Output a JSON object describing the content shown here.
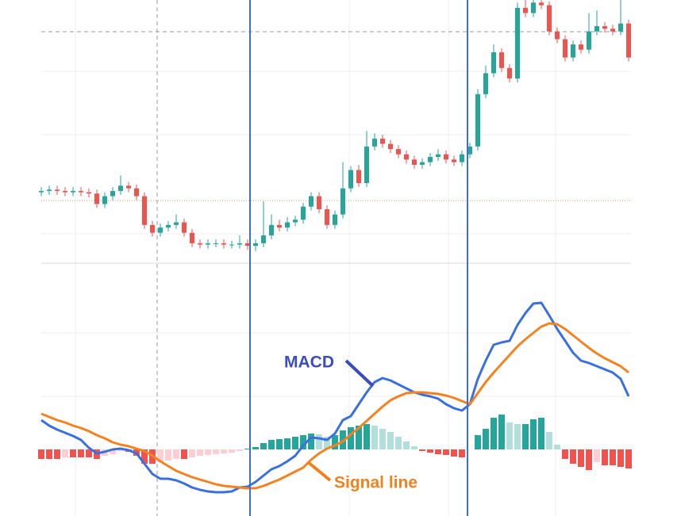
{
  "chart_data": [
    {
      "type": "candlestick",
      "up_color": "#26a69a",
      "down_color": "#ef5350",
      "ylim": [
        0,
        100
      ],
      "open": [
        26.5,
        27,
        27.5,
        27,
        26.5,
        27,
        26.5,
        26,
        22,
        25,
        27,
        29,
        28,
        25,
        14,
        11,
        13,
        14,
        15,
        11,
        7,
        6.5,
        7,
        7,
        6.5,
        6.5,
        7,
        6,
        7,
        10,
        14,
        13,
        15,
        16,
        21,
        25,
        20,
        14,
        18,
        28,
        35,
        30,
        44,
        47,
        45,
        43,
        41,
        39,
        37,
        38,
        40,
        41,
        39,
        38,
        41,
        44,
        64,
        72,
        80,
        74,
        70,
        97,
        95,
        99,
        98,
        88,
        85,
        78,
        83,
        81,
        88,
        90,
        89,
        88,
        91
      ],
      "high": [
        28.5,
        29,
        29,
        28.5,
        28.5,
        28.5,
        28,
        27.5,
        26.5,
        28.5,
        33,
        30.5,
        29.5,
        26.5,
        15.5,
        14.5,
        15.5,
        18,
        16.5,
        12.5,
        8.5,
        8.5,
        8.5,
        8.5,
        8,
        10,
        8.5,
        8.5,
        23,
        18,
        16,
        17,
        17.5,
        22.5,
        26.5,
        26.5,
        21.5,
        19.5,
        38,
        36.5,
        37,
        50,
        49,
        48.5,
        46.5,
        44.5,
        42.5,
        40.5,
        39.5,
        41.5,
        43,
        42.5,
        40.5,
        42.5,
        45.5,
        66,
        75,
        83,
        81.5,
        75.5,
        99,
        100,
        100,
        100,
        99.5,
        89.5,
        86.5,
        84.5,
        84.5,
        95,
        96,
        91.5,
        90.5,
        100,
        92.5
      ],
      "low": [
        25,
        25.5,
        25.5,
        25,
        25,
        25,
        24.5,
        20.5,
        20.5,
        23.5,
        25.5,
        26.5,
        23.5,
        12.5,
        9.5,
        9.5,
        11.5,
        12.5,
        9.5,
        5.5,
        5,
        5,
        5.5,
        5,
        5,
        5,
        4.5,
        4,
        5.5,
        8.5,
        11.5,
        11.5,
        13.5,
        14.5,
        19.5,
        18.5,
        12.5,
        12.5,
        16.5,
        26.5,
        28.5,
        28.5,
        42.5,
        43.5,
        41.5,
        39.5,
        37.5,
        35.5,
        35.5,
        36.5,
        38.5,
        37.5,
        36.5,
        36.5,
        39.5,
        42.5,
        62.5,
        70.5,
        72.5,
        68.5,
        68.5,
        93.5,
        93.5,
        96.5,
        86.5,
        83.5,
        76.5,
        76.5,
        79.5,
        79.5,
        86.5,
        87.5,
        86.5,
        86.5,
        76.5
      ],
      "close": [
        27,
        27.5,
        27,
        26.5,
        27,
        26.5,
        26,
        22,
        25,
        27,
        29,
        28,
        25,
        14,
        11,
        13,
        14,
        15,
        11,
        7,
        6.5,
        7,
        7,
        6.5,
        6.5,
        7,
        6,
        7,
        10,
        14,
        13,
        15,
        16,
        21,
        25,
        20,
        14,
        18,
        28,
        35,
        30,
        44,
        47,
        45,
        43,
        41,
        39,
        37,
        38,
        40,
        41,
        39,
        38,
        41,
        44,
        64,
        72,
        80,
        74,
        70,
        97,
        95,
        99,
        98,
        88,
        85,
        78,
        83,
        81,
        88,
        90,
        89,
        88,
        91,
        78
      ]
    },
    {
      "type": "macd",
      "ylim": [
        -42,
        111
      ],
      "series": [
        {
          "name": "MACD",
          "color": "#3a6fe0",
          "label_color": "#3b4cc0",
          "values": [
            18.5,
            15,
            12.5,
            10.5,
            8.5,
            6,
            1,
            -2.5,
            -1.5,
            0,
            0.5,
            -0.5,
            -2.5,
            -9,
            -15.5,
            -18.5,
            -18.5,
            -19.5,
            -21.5,
            -24,
            -25.5,
            -26.5,
            -27,
            -27,
            -26.5,
            -24,
            -23.5,
            -20.5,
            -16.5,
            -12.5,
            -10.5,
            -7.5,
            -4,
            2.5,
            7.5,
            7,
            6,
            10,
            18.5,
            21,
            28.5,
            36,
            42.5,
            45,
            43.5,
            41,
            38.5,
            36,
            34.5,
            33.5,
            32,
            28.5,
            26,
            24.5,
            28.5,
            44.5,
            56,
            66,
            67.5,
            68.5,
            78.5,
            86,
            92,
            92.5,
            84.5,
            76,
            68.5,
            61,
            56,
            54.5,
            52.5,
            50.5,
            48.5,
            44.5,
            33.5
          ]
        },
        {
          "name": "Signal line",
          "color": "#f58220",
          "label_color": "#f0821e",
          "values": [
            22.5,
            20.5,
            18.5,
            17,
            15,
            13.5,
            11.5,
            9,
            7,
            4.5,
            3,
            2,
            0.5,
            -1,
            -4,
            -7.5,
            -10.5,
            -13.5,
            -15.5,
            -17.5,
            -19,
            -20.5,
            -22,
            -23,
            -23.5,
            -24,
            -24.5,
            -24.5,
            -23,
            -21,
            -19,
            -16.5,
            -14,
            -11.5,
            -6.5,
            -2.5,
            0.5,
            2.5,
            5,
            9.5,
            13.5,
            18,
            22.5,
            27,
            31,
            33.5,
            35.5,
            36,
            36,
            35.5,
            35,
            34,
            32.5,
            30.5,
            28.5,
            35.5,
            42.5,
            48.5,
            54,
            59.5,
            65,
            69.5,
            73.5,
            77.5,
            79.5,
            79,
            76,
            72,
            68,
            64,
            60.5,
            57.5,
            55,
            52.5,
            48.5
          ]
        }
      ],
      "histogram": {
        "colors": {
          "up_rising": "#26a69a",
          "up_falling": "#b2dfdb",
          "down_falling": "#ef5350",
          "down_rising": "#ffcdd2"
        },
        "values": [
          -6,
          -6,
          -6,
          -5,
          -5,
          -5,
          -5,
          -6,
          -4,
          -3,
          -1,
          -1.5,
          -4,
          -9,
          -9,
          -8,
          -7,
          -6,
          -6,
          -5,
          -4,
          -3.5,
          -3,
          -2.5,
          -2,
          -1,
          0.5,
          1.5,
          4,
          6,
          6.5,
          7,
          8,
          9,
          10,
          9.5,
          8,
          9,
          12,
          14,
          15,
          16,
          15,
          13,
          11,
          8,
          5,
          2,
          -1,
          -2,
          -3,
          -3.5,
          -4.5,
          -5,
          0,
          9,
          13,
          20,
          22,
          17,
          16,
          16,
          19,
          20,
          11,
          3,
          -6,
          -9,
          -11,
          -13,
          -8,
          -10,
          -10,
          -11,
          -12
        ]
      }
    }
  ]
}
